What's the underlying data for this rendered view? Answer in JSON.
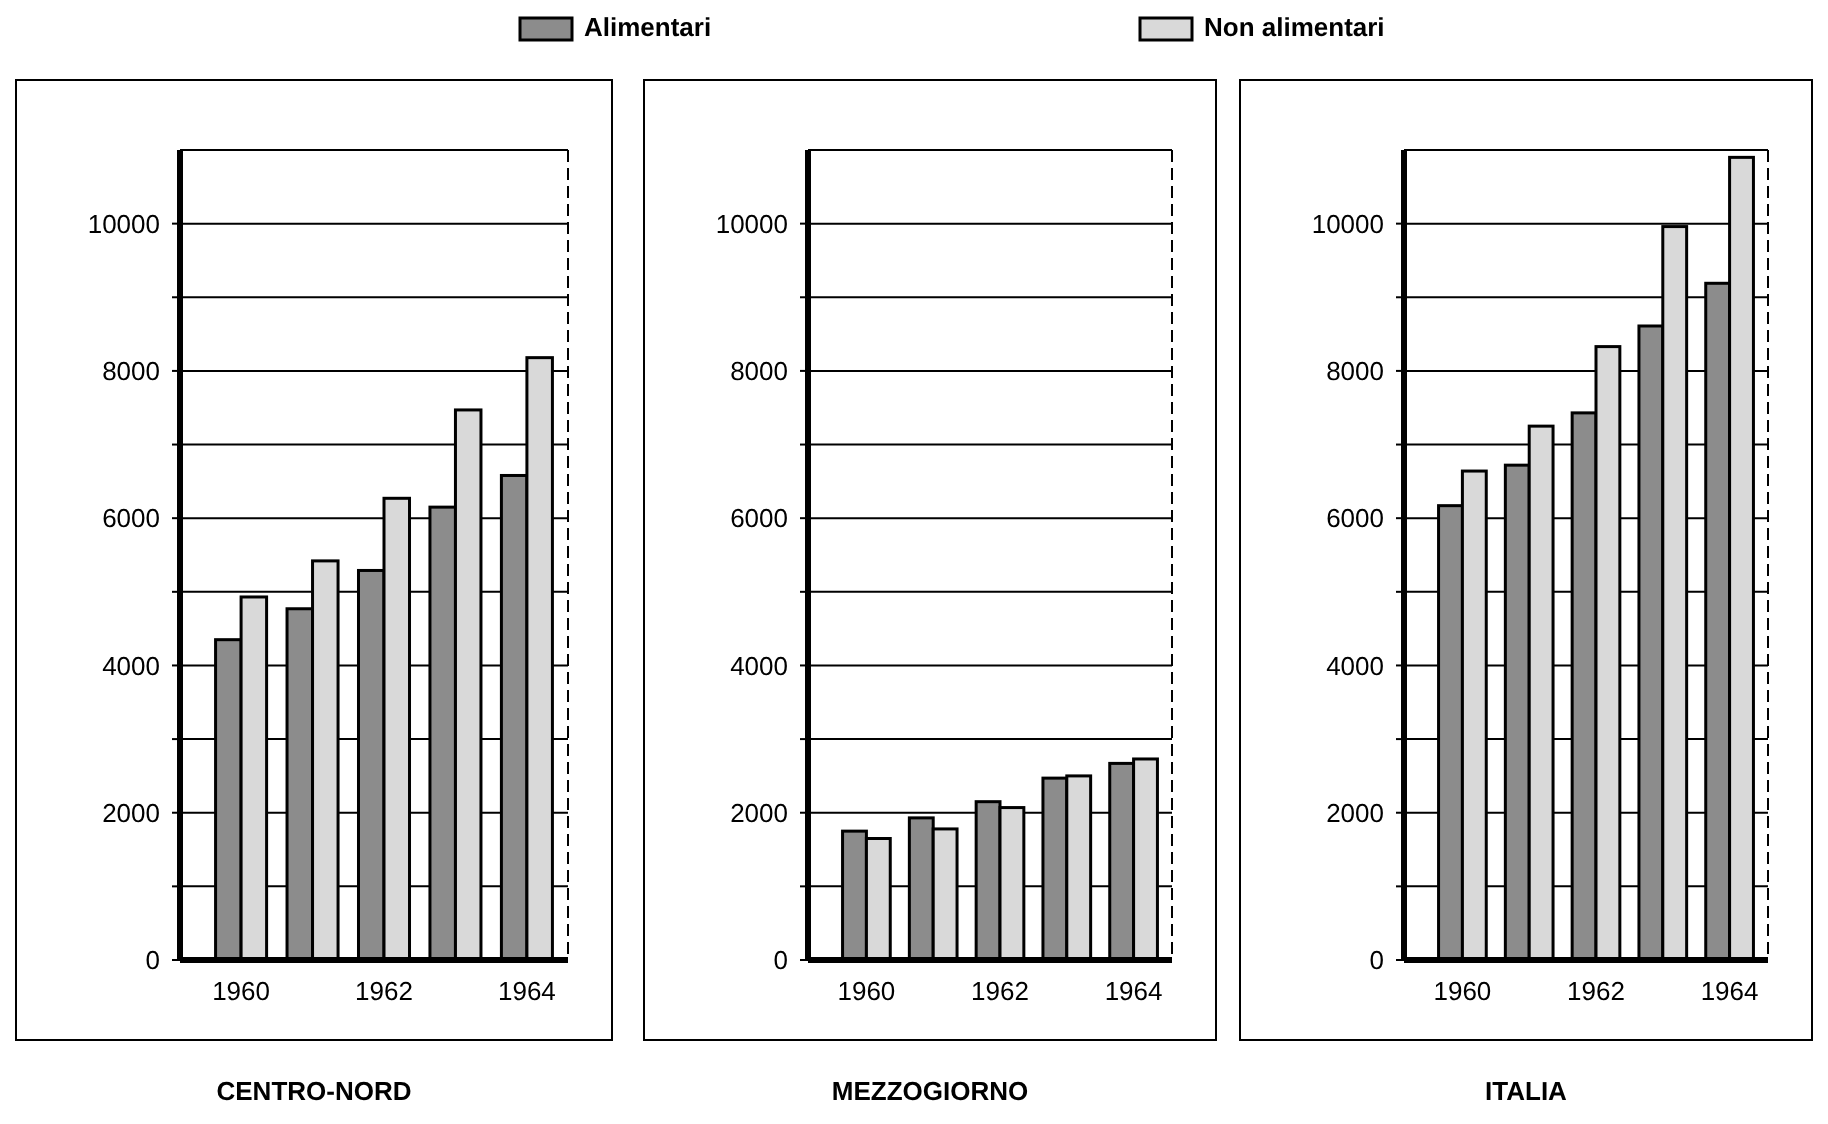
{
  "chart_data": [
    {
      "type": "bar",
      "title": "CENTRO-NORD",
      "categories": [
        "1960",
        null,
        "1962",
        null,
        "1964"
      ],
      "series": [
        {
          "name": "Alimentari",
          "color": "#8c8c8c",
          "values": [
            4350,
            4770,
            5290,
            6150,
            6580
          ]
        },
        {
          "name": "Non alimentari",
          "color": "#d9d9d9",
          "values": [
            4930,
            5420,
            6270,
            7470,
            8180
          ]
        }
      ],
      "ylim": [
        0,
        11000
      ],
      "yticks": [
        0,
        {
          "value": 1000,
          "label": null
        },
        2000,
        {
          "value": 3000,
          "label": null
        },
        4000,
        {
          "value": 5000,
          "label": null
        },
        6000,
        {
          "value": 7000,
          "label": null
        },
        8000,
        {
          "value": 9000,
          "label": null
        },
        10000
      ],
      "grid": "y",
      "legend": "top"
    },
    {
      "type": "bar",
      "title": "MEZZOGIORNO",
      "categories": [
        "1960",
        null,
        "1962",
        null,
        "1964"
      ],
      "series": [
        {
          "color": "#8c8c8c",
          "values": [
            1750,
            1930,
            2150,
            2470,
            2670
          ]
        },
        {
          "color": "#d9d9d9",
          "values": [
            1650,
            1780,
            2070,
            2500,
            2730
          ]
        }
      ],
      "ylim": [
        0,
        11000
      ],
      "yticks": [
        0,
        {
          "value": 1000,
          "label": null
        },
        2000,
        {
          "value": 3000,
          "label": null
        },
        4000,
        {
          "value": 5000,
          "label": null
        },
        6000,
        {
          "value": 7000,
          "label": null
        },
        8000,
        {
          "value": 9000,
          "label": null
        },
        10000
      ],
      "grid": "y"
    },
    {
      "type": "bar",
      "title": "ITALIA",
      "categories": [
        "1960",
        null,
        "1962",
        null,
        "1964"
      ],
      "series": [
        {
          "color": "#8c8c8c",
          "values": [
            6170,
            6720,
            7430,
            8610,
            9190
          ]
        },
        {
          "color": "#d9d9d9",
          "values": [
            6640,
            7250,
            8330,
            9960,
            10900
          ]
        }
      ],
      "ylim": [
        0,
        11000
      ],
      "yticks": [
        0,
        {
          "value": 1000,
          "label": null
        },
        2000,
        {
          "value": 3000,
          "label": null
        },
        4000,
        {
          "value": 5000,
          "label": null
        },
        6000,
        {
          "value": 7000,
          "label": null
        },
        8000,
        {
          "value": 9000,
          "label": null
        },
        10000
      ],
      "grid": "y"
    }
  ]
}
